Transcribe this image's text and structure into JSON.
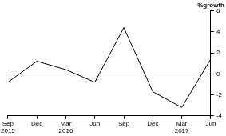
{
  "chart_data": {
    "type": "line",
    "y_label": "%growth",
    "categories": [
      "Sep 2015",
      "Dec",
      "Mar 2016",
      "Jun",
      "Sep",
      "Dec",
      "Mar 2017",
      "Jun"
    ],
    "values": [
      -0.8,
      1.2,
      0.4,
      -0.8,
      4.4,
      -1.7,
      -3.2,
      1.4
    ],
    "color": "#000000",
    "ylim": [
      -4,
      6
    ],
    "yticks": [
      -4,
      -2,
      0,
      2,
      4,
      6
    ],
    "grid": false
  }
}
